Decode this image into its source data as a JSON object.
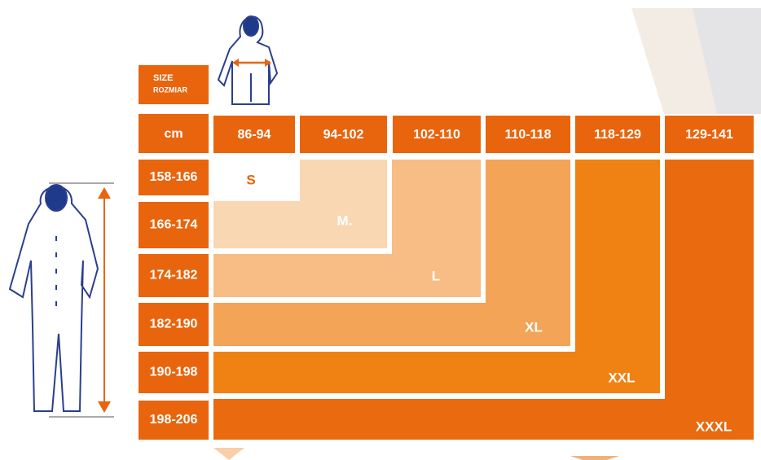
{
  "header": {
    "size_label": "SIZE",
    "size_label_pl": "ROZMIAR",
    "unit": "cm"
  },
  "chest_columns": [
    "86-94",
    "94-102",
    "102-110",
    "110-118",
    "118-129",
    "129-141"
  ],
  "height_rows": [
    "158-166",
    "166-174",
    "174-182",
    "182-190",
    "190-198",
    "198-206"
  ],
  "sizes": [
    "S",
    "M.",
    "L",
    "XL",
    "XXL",
    "XXXL"
  ]
}
